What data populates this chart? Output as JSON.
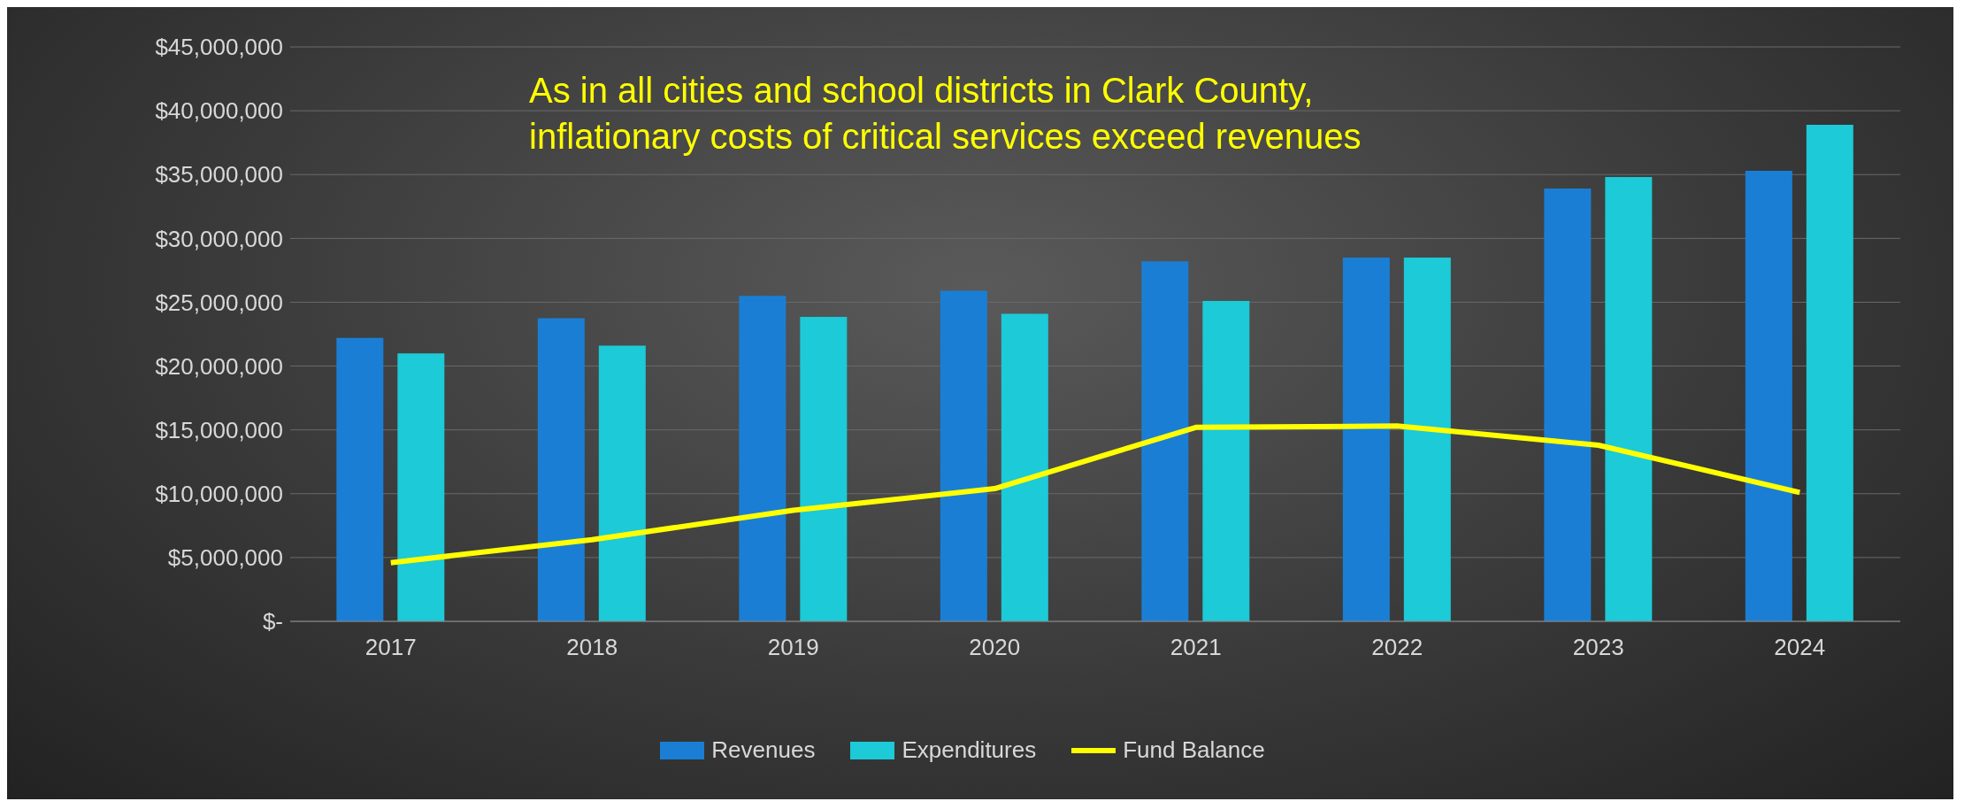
{
  "chart_data": {
    "type": "bar",
    "categories": [
      "2017",
      "2018",
      "2019",
      "2020",
      "2021",
      "2022",
      "2023",
      "2024"
    ],
    "series": [
      {
        "name": "Revenues",
        "color": "#1a7fd4",
        "values": [
          22200000,
          23750000,
          25500000,
          25900000,
          28200000,
          28500000,
          33900000,
          35300000
        ]
      },
      {
        "name": "Expenditures",
        "color": "#1ccad8",
        "values": [
          21000000,
          21600000,
          23850000,
          24100000,
          25100000,
          28500000,
          34800000,
          38900000
        ]
      },
      {
        "name": "Fund Balance",
        "type": "line",
        "color": "#ffff00",
        "values": [
          4600000,
          6400000,
          8700000,
          10400000,
          15200000,
          15300000,
          13800000,
          10100000
        ]
      }
    ],
    "ylim": [
      0,
      45000000
    ],
    "yticks": [
      {
        "value": 0,
        "label": "$-"
      },
      {
        "value": 5000000,
        "label": "$5,000,000"
      },
      {
        "value": 10000000,
        "label": "$10,000,000"
      },
      {
        "value": 15000000,
        "label": "$15,000,000"
      },
      {
        "value": 20000000,
        "label": "$20,000,000"
      },
      {
        "value": 25000000,
        "label": "$25,000,000"
      },
      {
        "value": 30000000,
        "label": "$30,000,000"
      },
      {
        "value": 35000000,
        "label": "$35,000,000"
      },
      {
        "value": 40000000,
        "label": "$40,000,000"
      },
      {
        "value": 45000000,
        "label": "$45,000,000"
      }
    ],
    "grid": "y",
    "legend": "bottom",
    "marker": "none",
    "line_style": "solid",
    "annotations": [
      "As in all cities and school districts in Clark County, inflationary costs of critical services exceed revenues"
    ]
  }
}
